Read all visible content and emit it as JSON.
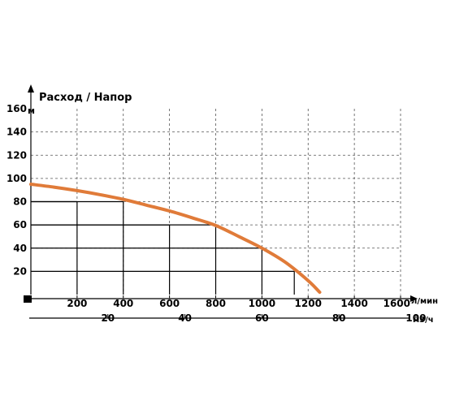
{
  "chart_data": {
    "type": "line",
    "title": "Расход / Напор",
    "x_unit": "л/мин",
    "y_unit": "м",
    "x_ticks": [
      200,
      400,
      600,
      800,
      1000,
      1200,
      1400,
      1600
    ],
    "y_ticks": [
      20,
      40,
      60,
      80,
      100,
      120,
      140,
      160
    ],
    "xlim": [
      0,
      1600
    ],
    "ylim": [
      0,
      160
    ],
    "grid": true,
    "secondary_x_unit": "м3/ч",
    "secondary_x_ticks": [
      20,
      40,
      60,
      80,
      100
    ],
    "series": [
      {
        "color": "#e07b39",
        "x": [
          0,
          100,
          200,
          300,
          400,
          500,
          600,
          700,
          800,
          900,
          1000,
          1100,
          1200,
          1250
        ],
        "y": [
          95,
          92.5,
          89.5,
          86,
          82,
          77,
          72,
          66,
          59.5,
          50,
          40,
          28,
          12,
          2
        ]
      }
    ],
    "guides": [
      {
        "x": 200,
        "y": 80
      },
      {
        "x": 400,
        "y": 80
      },
      {
        "x": 600,
        "y": 60
      },
      {
        "x": 800,
        "y": 60
      },
      {
        "x": 1000,
        "y": 40
      },
      {
        "x": 1140,
        "y": 20
      }
    ]
  }
}
